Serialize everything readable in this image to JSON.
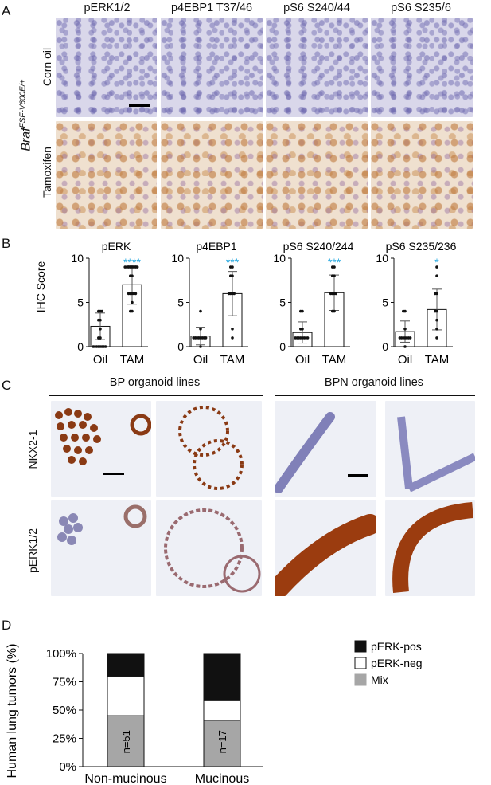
{
  "panels": {
    "A": "A",
    "B": "B",
    "C": "C",
    "D": "D"
  },
  "panelA": {
    "columns": [
      "pERK1/2",
      "p4EBP1 T37/46",
      "pS6 S240/44",
      "pS6 S235/6"
    ],
    "rows": [
      "Corn oil",
      "Tamoxifen"
    ],
    "genotype_base": "Braf",
    "genotype_sup": "FSF-V600E/+"
  },
  "panelB": {
    "ylabel": "IHC Score",
    "yticks": [
      "0",
      "5",
      "10"
    ],
    "groups": [
      "Oil",
      "TAM"
    ]
  },
  "panelC": {
    "group_left": "BP organoid lines",
    "group_right": "BPN organoid lines",
    "rows": [
      "NKX2-1",
      "pERK1/2"
    ]
  },
  "panelD": {
    "ylabel": "Human lung tumors (%)",
    "yticks": [
      "0%",
      "25%",
      "50%",
      "75%",
      "100%"
    ],
    "legend": [
      {
        "label": "pERK-pos",
        "color": "#111111"
      },
      {
        "label": "pERK-neg",
        "color": "#ffffff"
      },
      {
        "label": "Mix",
        "color": "#a6a6a6"
      }
    ]
  },
  "chart_data": [
    {
      "type": "bar",
      "title": "pERK",
      "ylabel": "IHC Score",
      "ylim": [
        0,
        10
      ],
      "categories": [
        "Oil",
        "TAM"
      ],
      "values": [
        2.3,
        7.0
      ],
      "error": [
        1.5,
        2.2
      ],
      "significance": "****",
      "points": {
        "Oil": [
          0,
          0,
          0,
          0,
          0,
          0,
          0,
          0,
          1,
          1,
          2,
          3,
          3,
          4,
          4,
          4
        ],
        "TAM": [
          4,
          4,
          5,
          6,
          6,
          6,
          6,
          6,
          8,
          8,
          9,
          9,
          9,
          9,
          9,
          9,
          9,
          9
        ]
      }
    },
    {
      "type": "bar",
      "title": "p4EBP1",
      "ylabel": "IHC Score",
      "ylim": [
        0,
        10
      ],
      "categories": [
        "Oil",
        "TAM"
      ],
      "values": [
        1.2,
        6.0
      ],
      "error": [
        1.0,
        2.5
      ],
      "significance": "***",
      "points": {
        "Oil": [
          0,
          1,
          1,
          1,
          1,
          1,
          1,
          1,
          1,
          2,
          4
        ],
        "TAM": [
          1,
          2,
          6,
          6,
          6,
          6,
          8,
          8,
          9,
          9
        ]
      }
    },
    {
      "type": "bar",
      "title": "pS6 S240/244",
      "ylabel": "IHC Score",
      "ylim": [
        0,
        10
      ],
      "categories": [
        "Oil",
        "TAM"
      ],
      "values": [
        1.6,
        6.1
      ],
      "error": [
        1.2,
        2.0
      ],
      "significance": "***",
      "points": {
        "Oil": [
          1,
          1,
          1,
          1,
          1,
          1,
          1,
          1,
          2,
          2,
          4,
          4
        ],
        "TAM": [
          4,
          4,
          6,
          6,
          6,
          6,
          8,
          8,
          9,
          9
        ]
      }
    },
    {
      "type": "bar",
      "title": "pS6 S235/236",
      "ylabel": "IHC Score",
      "ylim": [
        0,
        10
      ],
      "categories": [
        "Oil",
        "TAM"
      ],
      "values": [
        1.7,
        4.2
      ],
      "error": [
        1.2,
        2.3
      ],
      "significance": "*",
      "points": {
        "Oil": [
          0,
          1,
          1,
          1,
          1,
          1,
          1,
          1,
          2,
          4,
          4
        ],
        "TAM": [
          1,
          2,
          3,
          4,
          4,
          6,
          6,
          8,
          9
        ]
      }
    },
    {
      "type": "bar",
      "stacked": true,
      "ylabel": "Human lung tumors (%)",
      "ylim": [
        0,
        100
      ],
      "categories": [
        "Non-mucinous",
        "Mucinous"
      ],
      "series": [
        {
          "name": "Mix",
          "values": [
            45,
            41
          ]
        },
        {
          "name": "pERK-neg",
          "values": [
            35,
            18
          ]
        },
        {
          "name": "pERK-pos",
          "values": [
            20,
            41
          ]
        }
      ],
      "annotations": [
        "n=51",
        "n=17"
      ]
    }
  ]
}
